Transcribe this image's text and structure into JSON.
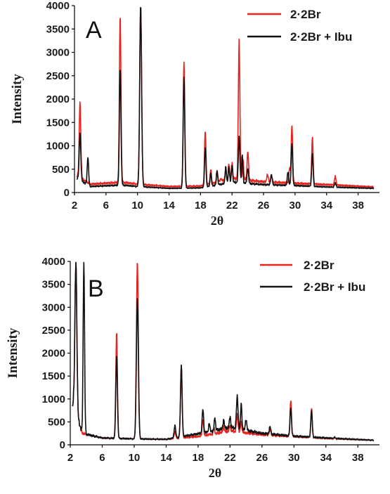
{
  "chart_data": [
    {
      "type": "line",
      "panel_label": "A",
      "xlabel": "2θ",
      "ylabel": "Intensity",
      "xlim": [
        2,
        40
      ],
      "ylim": [
        0,
        4000
      ],
      "x_ticks": [
        "2",
        "6",
        "10",
        "14",
        "18",
        "22",
        "26",
        "30",
        "34",
        "38"
      ],
      "y_ticks": [
        "0",
        "500",
        "1000",
        "1500",
        "2000",
        "2500",
        "3000",
        "3500",
        "4000"
      ],
      "legend_position": "top-right",
      "grid": false,
      "series": [
        {
          "name": "2·2Br",
          "color": "#e8231f",
          "baseline": [
            [
              2.4,
              350
            ],
            [
              4,
              180
            ],
            [
              8,
              220
            ],
            [
              10,
              180
            ],
            [
              14,
              130
            ],
            [
              18,
              140
            ],
            [
              22,
              300
            ],
            [
              26,
              230
            ],
            [
              30,
              200
            ],
            [
              34,
              170
            ],
            [
              40,
              120
            ]
          ],
          "peaks": [
            [
              2.7,
              1950,
              0.1
            ],
            [
              7.8,
              3780,
              0.1
            ],
            [
              10.4,
              4000,
              0.12
            ],
            [
              15.9,
              2800,
              0.1
            ],
            [
              18.6,
              1320,
              0.09
            ],
            [
              19.3,
              500,
              0.08
            ],
            [
              20.1,
              480,
              0.08
            ],
            [
              20.6,
              300,
              0.08
            ],
            [
              21.2,
              520,
              0.08
            ],
            [
              21.6,
              620,
              0.08
            ],
            [
              22.0,
              650,
              0.08
            ],
            [
              22.9,
              3250,
              0.1
            ],
            [
              23.4,
              700,
              0.08
            ],
            [
              24.0,
              900,
              0.09
            ],
            [
              26.5,
              380,
              0.1
            ],
            [
              27.0,
              350,
              0.1
            ],
            [
              29.3,
              520,
              0.09
            ],
            [
              29.6,
              1460,
              0.09
            ],
            [
              32.2,
              1180,
              0.09
            ],
            [
              35.1,
              340,
              0.1
            ]
          ]
        },
        {
          "name": "2·2Br + Ibu",
          "color": "#111111",
          "baseline": [
            [
              2.4,
              300
            ],
            [
              4,
              130
            ],
            [
              8,
              160
            ],
            [
              10,
              130
            ],
            [
              14,
              90
            ],
            [
              18,
              100
            ],
            [
              22,
              220
            ],
            [
              26,
              170
            ],
            [
              30,
              150
            ],
            [
              34,
              120
            ],
            [
              40,
              90
            ]
          ],
          "peaks": [
            [
              2.7,
              1280,
              0.1
            ],
            [
              3.7,
              760,
              0.09
            ],
            [
              7.8,
              2650,
              0.1
            ],
            [
              10.4,
              4000,
              0.12
            ],
            [
              15.9,
              2480,
              0.1
            ],
            [
              18.6,
              980,
              0.09
            ],
            [
              19.3,
              430,
              0.08
            ],
            [
              20.1,
              470,
              0.08
            ],
            [
              21.2,
              560,
              0.08
            ],
            [
              21.6,
              570,
              0.08
            ],
            [
              22.0,
              580,
              0.08
            ],
            [
              22.9,
              1180,
              0.1
            ],
            [
              23.3,
              800,
              0.08
            ],
            [
              24.0,
              530,
              0.09
            ],
            [
              27.0,
              380,
              0.1
            ],
            [
              29.1,
              450,
              0.09
            ],
            [
              29.6,
              1070,
              0.09
            ],
            [
              32.2,
              830,
              0.09
            ],
            [
              35.1,
              200,
              0.1
            ]
          ]
        }
      ]
    },
    {
      "type": "line",
      "panel_label": "B",
      "xlabel": "2θ",
      "ylabel": "Intensity",
      "xlim": [
        2,
        40
      ],
      "ylim": [
        0,
        4000
      ],
      "x_ticks": [
        "2",
        "6",
        "10",
        "14",
        "18",
        "22",
        "26",
        "30",
        "34",
        "38"
      ],
      "y_ticks": [
        "0",
        "500",
        "1000",
        "1500",
        "2000",
        "2500",
        "3000",
        "3500",
        "4000"
      ],
      "legend_position": "top-right",
      "grid": false,
      "series": [
        {
          "name": "2·2Br",
          "color": "#e8231f",
          "baseline": [
            [
              2.4,
              900
            ],
            [
              3.5,
              250
            ],
            [
              6,
              150
            ],
            [
              10,
              130
            ],
            [
              14,
              120
            ],
            [
              18,
              180
            ],
            [
              22,
              300
            ],
            [
              26,
              220
            ],
            [
              30,
              180
            ],
            [
              34,
              140
            ],
            [
              40,
              100
            ]
          ],
          "peaks": [
            [
              2.7,
              4000,
              0.12
            ],
            [
              7.8,
              2460,
              0.1
            ],
            [
              10.4,
              4000,
              0.12
            ],
            [
              15.1,
              280,
              0.1
            ],
            [
              15.9,
              1740,
              0.1
            ],
            [
              18.6,
              550,
              0.09
            ],
            [
              20.0,
              350,
              0.08
            ],
            [
              21.2,
              400,
              0.08
            ],
            [
              22.0,
              420,
              0.08
            ],
            [
              22.9,
              650,
              0.1
            ],
            [
              23.4,
              500,
              0.08
            ],
            [
              27.0,
              330,
              0.1
            ],
            [
              29.6,
              980,
              0.09
            ],
            [
              32.2,
              780,
              0.09
            ],
            [
              35.1,
              150,
              0.1
            ]
          ]
        },
        {
          "name": "2·2Br + Ibu",
          "color": "#111111",
          "baseline": [
            [
              2.4,
              900
            ],
            [
              3.5,
              250
            ],
            [
              6,
              150
            ],
            [
              10,
              130
            ],
            [
              14,
              120
            ],
            [
              18,
              240
            ],
            [
              22,
              380
            ],
            [
              26,
              250
            ],
            [
              30,
              190
            ],
            [
              34,
              150
            ],
            [
              40,
              100
            ]
          ],
          "peaks": [
            [
              2.7,
              4000,
              0.12
            ],
            [
              3.7,
              4000,
              0.09
            ],
            [
              7.8,
              1950,
              0.1
            ],
            [
              10.4,
              3220,
              0.12
            ],
            [
              15.1,
              420,
              0.1
            ],
            [
              15.9,
              1750,
              0.1
            ],
            [
              18.6,
              780,
              0.09
            ],
            [
              19.4,
              470,
              0.08
            ],
            [
              20.1,
              600,
              0.08
            ],
            [
              21.2,
              550,
              0.08
            ],
            [
              22.0,
              620,
              0.08
            ],
            [
              22.9,
              1050,
              0.1
            ],
            [
              23.4,
              900,
              0.08
            ],
            [
              24.0,
              560,
              0.09
            ],
            [
              27.0,
              390,
              0.1
            ],
            [
              29.6,
              820,
              0.09
            ],
            [
              32.2,
              740,
              0.09
            ],
            [
              35.1,
              160,
              0.1
            ]
          ]
        }
      ]
    }
  ]
}
